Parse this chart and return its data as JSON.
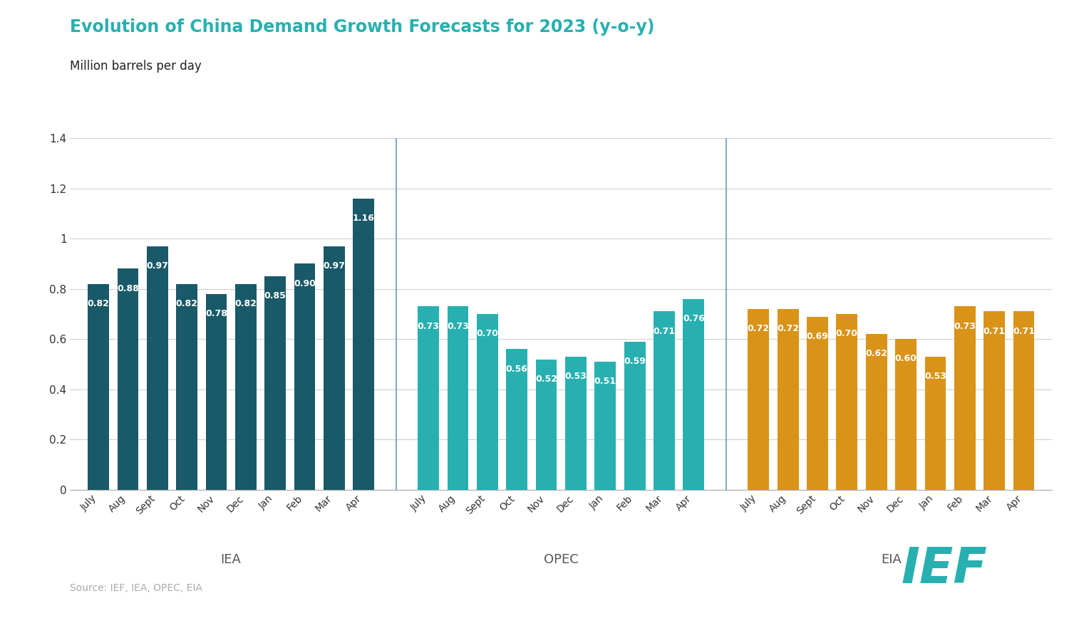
{
  "title": "Evolution of China Demand Growth Forecasts for 2023 (y-o-y)",
  "subtitle": "Million barrels per day",
  "source": "Source: IEF, IEA, OPEC, EIA",
  "groups": [
    {
      "name": "IEA",
      "color": "#1a5968",
      "months": [
        "July",
        "Aug",
        "Sept",
        "Oct",
        "Nov",
        "Dec",
        "Jan",
        "Feb",
        "Mar",
        "Apr"
      ],
      "values": [
        0.82,
        0.88,
        0.97,
        0.82,
        0.78,
        0.82,
        0.85,
        0.9,
        0.97,
        1.16
      ]
    },
    {
      "name": "OPEC",
      "color": "#28b0b0",
      "months": [
        "July",
        "Aug",
        "Sept",
        "Oct",
        "Nov",
        "Dec",
        "Jan",
        "Feb",
        "Mar",
        "Apr"
      ],
      "values": [
        0.73,
        0.73,
        0.7,
        0.56,
        0.52,
        0.53,
        0.51,
        0.59,
        0.71,
        0.76
      ]
    },
    {
      "name": "EIA",
      "color": "#d99318",
      "months": [
        "July",
        "Aug",
        "Sept",
        "Oct",
        "Nov",
        "Dec",
        "Jan",
        "Feb",
        "Mar",
        "Apr"
      ],
      "values": [
        0.72,
        0.72,
        0.69,
        0.7,
        0.62,
        0.6,
        0.53,
        0.73,
        0.71,
        0.71
      ]
    }
  ],
  "ylim": [
    0,
    1.4
  ],
  "yticks": [
    0,
    0.2,
    0.4,
    0.6,
    0.8,
    1.0,
    1.2,
    1.4
  ],
  "ytick_labels": [
    "0",
    "0.2",
    "0.4",
    "0.6",
    "0.8",
    "1",
    "1.2",
    "1.4"
  ],
  "title_color": "#28b0b0",
  "subtitle_color": "#222222",
  "source_color": "#aaaaaa",
  "group_label_color": "#555555",
  "grid_color": "#d0d0d0",
  "separator_color": "#6699bb",
  "ief_color": "#28b0b0",
  "bar_label_fontsize": 9,
  "group_label_fontsize": 13
}
